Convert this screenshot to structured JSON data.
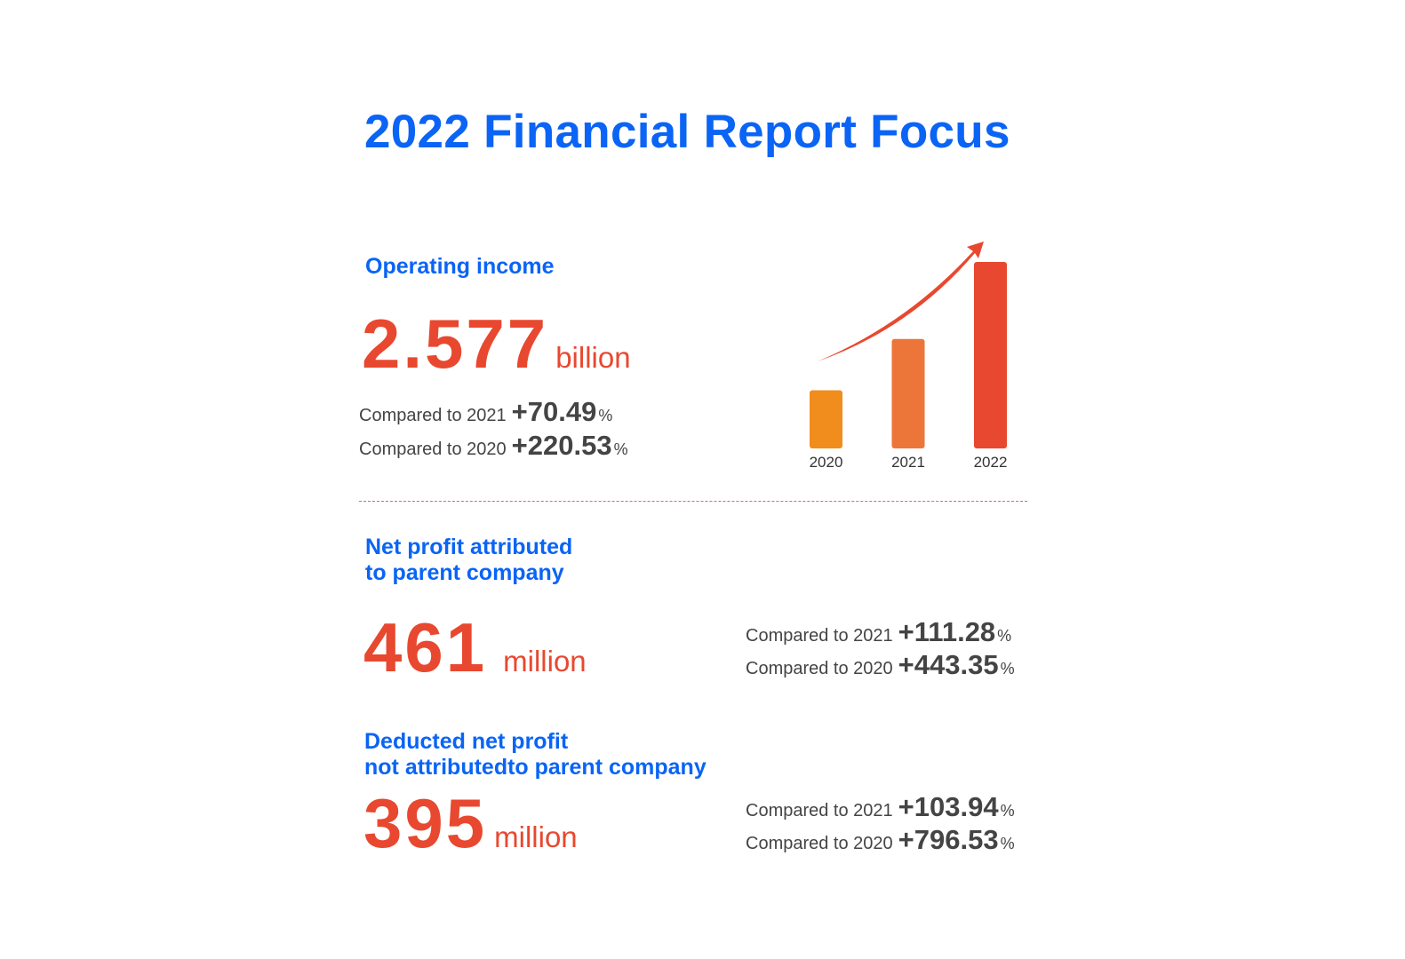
{
  "title": "2022 Financial Report Focus",
  "sections": [
    {
      "heading_lines": [
        "Operating income"
      ],
      "value": "2.577",
      "unit": "billion",
      "comparisons": [
        {
          "label": "Compared to 2021",
          "value": "+70.49",
          "suffix": "%"
        },
        {
          "label": "Compared to 2020",
          "value": "+220.53",
          "suffix": "%"
        }
      ]
    },
    {
      "heading_lines": [
        "Net profit attributed",
        "to parent company"
      ],
      "value": "461",
      "unit": "million",
      "comparisons": [
        {
          "label": "Compared to 2021",
          "value": "+111.28",
          "suffix": "%"
        },
        {
          "label": "Compared to 2020",
          "value": "+443.35",
          "suffix": "%"
        }
      ]
    },
    {
      "heading_lines": [
        "Deducted net profit",
        "not attributedto parent company"
      ],
      "value": "395",
      "unit": "million",
      "comparisons": [
        {
          "label": "Compared to 2021",
          "value": "+103.94",
          "suffix": "%"
        },
        {
          "label": "Compared to 2020",
          "value": "+796.53",
          "suffix": "%"
        }
      ]
    }
  ],
  "colors": {
    "title": "#0a64f5",
    "value": "#e8482f",
    "text": "#444444",
    "arrow": "#e8482f"
  },
  "chart_data": {
    "type": "bar",
    "categories": [
      "2020",
      "2021",
      "2022"
    ],
    "values": [
      0.804,
      1.512,
      2.577
    ],
    "colors": [
      "#f18d1d",
      "#ec753a",
      "#e8482f"
    ],
    "trend_arrow": true,
    "grid": false
  }
}
